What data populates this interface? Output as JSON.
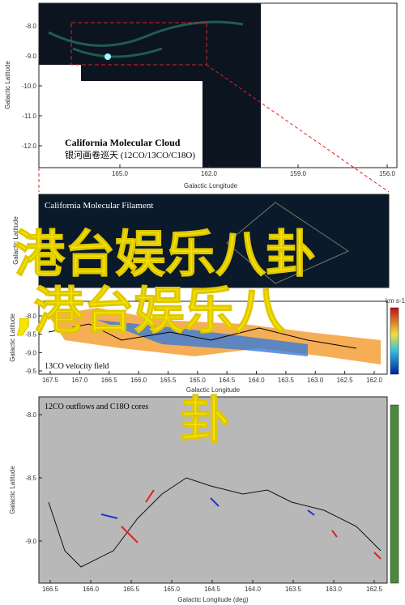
{
  "panel1": {
    "title": "California Molecular Cloud",
    "subtitle": "银河画卷巡天 (12CO/13CO/C18O)",
    "ylabel": "Galactic Latitude",
    "xlabel": "Galactic Longitude",
    "yticks": [
      "-8.0",
      "-9.0",
      "-10.0",
      "-11.0",
      "-12.0"
    ],
    "xticks": [
      "165.0",
      "162.0",
      "159.0",
      "156.0"
    ]
  },
  "panel2": {
    "title": "California Molecular Filament",
    "ylabel": "Galactic Latitude"
  },
  "panel3": {
    "title": "13CO velocity field",
    "ylabel": "Galactic Latitude",
    "xlabel": "Galactic Longitude",
    "colorbar_label": "km s-1",
    "yticks": [
      "-8.0",
      "-8.5",
      "-9.0",
      "-9.5"
    ],
    "xticks": [
      "167.5",
      "167.0",
      "166.5",
      "166.0",
      "165.5",
      "165.0",
      "164.5",
      "164.0",
      "163.5",
      "163.0",
      "162.5",
      "162.0"
    ]
  },
  "panel4": {
    "title": "12CO outflows and C18O cores",
    "ylabel": "Galactic Latitude",
    "xlabel": "Galactic Longitude (deg)",
    "yticks": [
      "-8.0",
      "-8.5",
      "-9.0"
    ],
    "xticks": [
      "166.5",
      "166.0",
      "165.5",
      "165.0",
      "164.5",
      "164.0",
      "163.5",
      "163.0",
      "162.5"
    ]
  },
  "overlay": {
    "line1": "港台娱乐八卦",
    "line2": ",港台娱乐八",
    "line3": "卦"
  }
}
